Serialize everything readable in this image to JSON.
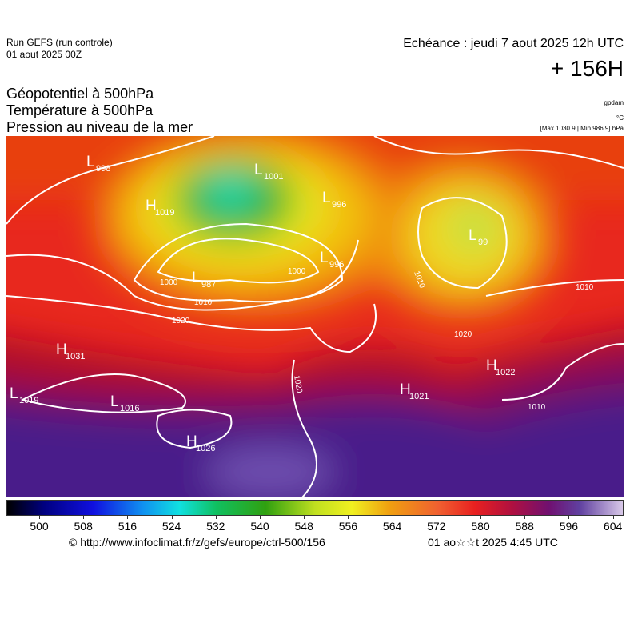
{
  "header": {
    "run": "Run GEFS (run controle)",
    "run_date": "01 aout 2025 00Z",
    "valid": "Echéance : jeudi 7 aout 2025 12h UTC",
    "lead": "+ 156H",
    "fields": [
      "Géopotentiel à 500hPa",
      "Température à 500hPa",
      "Pression au niveau de la mer"
    ],
    "units": [
      "gpdam",
      "°C",
      "[Max 1030.9 | Min 986.9] hPa"
    ]
  },
  "centers": [
    {
      "symbol": "L",
      "value": "998"
    },
    {
      "symbol": "H",
      "value": "1019"
    },
    {
      "symbol": "L",
      "value": "1001"
    },
    {
      "symbol": "L",
      "value": "996"
    },
    {
      "symbol": "L",
      "value": "987"
    },
    {
      "symbol": "L",
      "value": "996"
    },
    {
      "symbol": "L",
      "value": "99"
    },
    {
      "symbol": "H",
      "value": "1031"
    },
    {
      "symbol": "L",
      "value": "1019"
    },
    {
      "symbol": "L",
      "value": "1016"
    },
    {
      "symbol": "H",
      "value": "1026"
    },
    {
      "symbol": "H",
      "value": "1022"
    },
    {
      "symbol": "H",
      "value": "1021"
    }
  ],
  "isobar_labels": [
    "1000",
    "1010",
    "1020",
    "1000",
    "1010",
    "1020",
    "1010",
    "1010",
    "1020"
  ],
  "colorbar": {
    "ticks": [
      500,
      508,
      516,
      524,
      532,
      540,
      548,
      556,
      564,
      572,
      580,
      588,
      596,
      604
    ]
  },
  "footer": {
    "source": "© http://www.infoclimat.fr/z/gefs/europe/ctrl-500/156",
    "generated": "01 ao☆☆t 2025  4:45 UTC"
  }
}
